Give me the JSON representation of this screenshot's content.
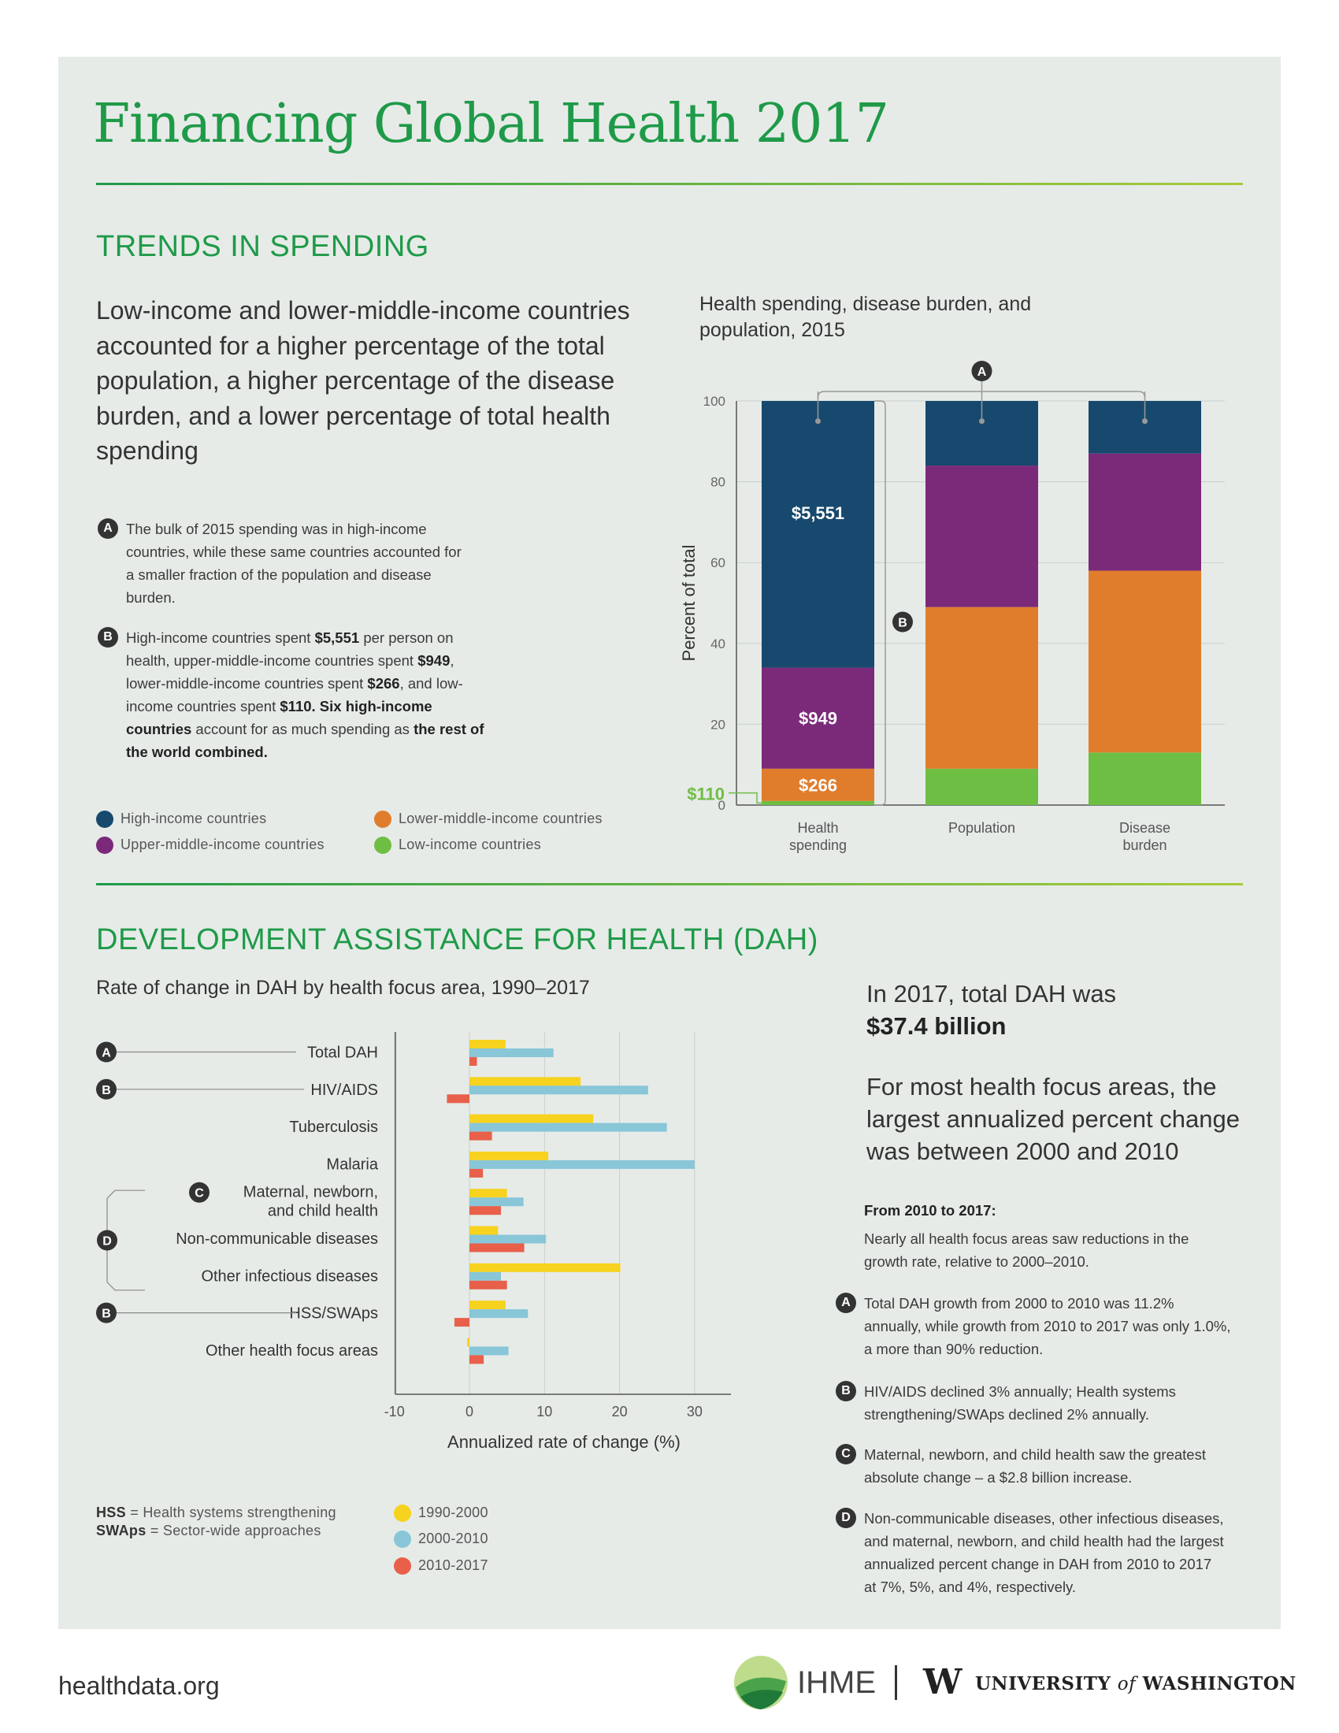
{
  "header": {
    "title": "Financing Global Health 2017"
  },
  "section1": {
    "heading": "TRENDS IN SPENDING",
    "lead": "Low-income and lower-middle-income countries accounted for a higher percentage of the total population, a higher percentage of the disease burden, and a lower percentage of total health spending",
    "notes": [
      {
        "marker": "A",
        "text": "The bulk of 2015 spending was in high-income countries, while these same countries accounted for a smaller fraction of the population and disease burden."
      },
      {
        "marker": "B",
        "p1": "High-income countries spent ",
        "v1": "$5,551",
        "p2": " per person on health, upper-middle-income countries spent ",
        "v2": "$949",
        "p3": ", lower-middle-income countries spent ",
        "v3": "$266",
        "p4": ", and low-income countries spent ",
        "v4": "$110. Six high-income countries",
        "p5": " account for as much spending as ",
        "v5": "the rest of the world combined."
      }
    ],
    "legend": [
      {
        "label": "High-income countries",
        "color": "#17496e"
      },
      {
        "label": "Lower-middle-income countries",
        "color": "#e07d2c"
      },
      {
        "label": "Upper-middle-income countries",
        "color": "#7b2a7a"
      },
      {
        "label": "Low-income countries",
        "color": "#6fbe44"
      }
    ]
  },
  "section2": {
    "heading": "DEVELOPMENT ASSISTANCE FOR HEALTH (DAH)",
    "big1a": "In 2017, total DAH was",
    "big1b": "$37.4 billion",
    "big2": "For most health focus areas, the largest annualized percent change was between 2000 and 2010",
    "from_heading": "From 2010 to 2017:",
    "from_text": "Nearly all health focus areas saw reductions in the growth rate, relative to 2000–2010.",
    "notes": [
      {
        "marker": "A",
        "text": "Total DAH growth from 2000 to 2010 was 11.2% annually, while growth from 2010 to 2017 was only 1.0%, a more than 90% reduction."
      },
      {
        "marker": "B",
        "text": "HIV/AIDS declined 3% annually; Health systems strengthening/SWAps declined 2% annually."
      },
      {
        "marker": "C",
        "text": "Maternal, newborn, and child health saw the greatest absolute change – a $2.8 billion increase."
      },
      {
        "marker": "D",
        "text": "Non-communicable diseases, other infectious diseases, and maternal, newborn, and child health had the largest annualized percent change in DAH from 2010 to 2017 at 7%, 5%, and 4%, respectively."
      }
    ],
    "abbrev": [
      {
        "abbr": "HSS",
        "text": " = Health systems strengthening"
      },
      {
        "abbr": "SWAps",
        "text": " = Sector-wide approaches"
      }
    ]
  },
  "chart_data": [
    {
      "type": "bar",
      "stacked": true,
      "title": "Health spending, disease burden, and population, 2015",
      "ylabel": "Percent of total",
      "xlabel": "",
      "ylim": [
        0,
        100
      ],
      "yticks": [
        0,
        20,
        40,
        60,
        80,
        100
      ],
      "categories": [
        "Health spending",
        "Population",
        "Disease burden"
      ],
      "series": [
        {
          "name": "Low-income countries",
          "color": "#6fbe44",
          "values": [
            1,
            9,
            13
          ]
        },
        {
          "name": "Lower-middle-income countries",
          "color": "#e07d2c",
          "values": [
            8,
            40,
            45
          ]
        },
        {
          "name": "Upper-middle-income countries",
          "color": "#7b2a7a",
          "values": [
            25,
            35,
            29
          ]
        },
        {
          "name": "High-income countries",
          "color": "#17496e",
          "values": [
            66,
            16,
            13
          ]
        }
      ],
      "data_labels": [
        "$5,551",
        "$949",
        "$266",
        "$110"
      ],
      "annotations": [
        "A",
        "B"
      ],
      "grid": true
    },
    {
      "type": "bar",
      "orientation": "horizontal",
      "title": "Rate of change in DAH by health focus area, 1990–2017",
      "xlabel": "Annualized rate of change (%)",
      "ylabel": "",
      "xlim": [
        -10,
        35
      ],
      "xticks": [
        -10,
        0,
        10,
        20,
        30
      ],
      "categories": [
        "Total DAH",
        "HIV/AIDS",
        "Tuberculosis",
        "Malaria",
        "Maternal, newborn, and child health",
        "Non-communicable diseases",
        "Other infectious diseases",
        "HSS/SWAps",
        "Other health focus areas"
      ],
      "category_markers": [
        "A",
        "B",
        "",
        "",
        "C",
        "D",
        "",
        "B",
        ""
      ],
      "series": [
        {
          "name": "1990-2000",
          "color": "#f7d21e",
          "values": [
            4.8,
            14.8,
            16.5,
            10.5,
            5.0,
            3.8,
            20.1,
            4.8,
            -0.3
          ]
        },
        {
          "name": "2000-2010",
          "color": "#88c6d8",
          "values": [
            11.2,
            23.8,
            26.3,
            30.0,
            7.2,
            10.2,
            4.2,
            7.8,
            5.2
          ]
        },
        {
          "name": "2010-2017",
          "color": "#e8604a",
          "values": [
            1.0,
            -3.0,
            3.0,
            1.8,
            4.2,
            7.3,
            5.0,
            -2.0,
            1.9
          ]
        }
      ],
      "grid": true
    }
  ],
  "footer": {
    "site": "healthdata.org",
    "ihme": "IHME",
    "uw_w": "W",
    "uw_a": "UNIVERSITY",
    "uw_of": "of",
    "uw_b": "WASHINGTON"
  }
}
